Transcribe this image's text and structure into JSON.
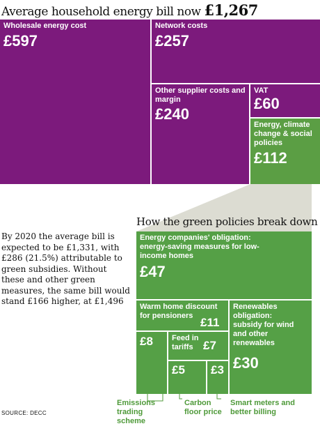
{
  "title": {
    "prefix": "Average household energy bill now",
    "amount": "£1,267"
  },
  "treemap": {
    "wholesale": {
      "label": "Wholesale energy cost",
      "value": "£597"
    },
    "network": {
      "label": "Network costs",
      "value": "£257"
    },
    "supplier": {
      "label": "Other supplier costs and margin",
      "value": "£240"
    },
    "vat": {
      "label": "VAT",
      "value": "£60"
    },
    "policies": {
      "label": "Energy, climate change & social policies",
      "value": "£112"
    }
  },
  "breakdown": {
    "title": "How the green policies break down",
    "eco": {
      "label": "Energy companies' obligation: energy-saving measures for low-income homes",
      "value": "£47"
    },
    "warm": {
      "label": "Warm home discount for pensioners",
      "value": "£11"
    },
    "renew": {
      "label": "Renewables obligation: subsidy for wind and other renewables",
      "value": "£30"
    },
    "emissions": {
      "value": "£8",
      "callout": "Emissions trading scheme"
    },
    "fit": {
      "label": "Feed in tariffs",
      "value": "£7"
    },
    "carbon": {
      "value": "£5",
      "callout": "Carbon floor price"
    },
    "smart": {
      "value": "£3",
      "callout": "Smart meters and better billing"
    }
  },
  "note": "By 2020 the average bill is expected to be £1,331, with £286 (21.5%) attributable to green subsidies. Without these and other green measures, the same bill would stand £166 higher, at £1,496",
  "source": "SOURCE: DECC",
  "chart_data": [
    {
      "type": "treemap",
      "title": "Average household energy bill now £1,267",
      "categories": [
        "Wholesale energy cost",
        "Network costs",
        "Other supplier costs and margin",
        "VAT",
        "Energy, climate change & social policies"
      ],
      "values": [
        597,
        257,
        240,
        60,
        112
      ],
      "unit": "£",
      "colors": {
        "costs": "#7c1a7c",
        "policies": "#5b9e44"
      }
    },
    {
      "type": "treemap",
      "title": "How the green policies break down",
      "categories": [
        "Energy companies' obligation: energy-saving measures for low-income homes",
        "Warm home discount for pensioners",
        "Renewables obligation: subsidy for wind and other renewables",
        "Emissions trading scheme",
        "Feed in tariffs",
        "Carbon floor price",
        "Smart meters and better billing"
      ],
      "values": [
        47,
        11,
        30,
        8,
        7,
        5,
        3
      ],
      "unit": "£",
      "colors": {
        "policies": "#55a046"
      }
    }
  ]
}
